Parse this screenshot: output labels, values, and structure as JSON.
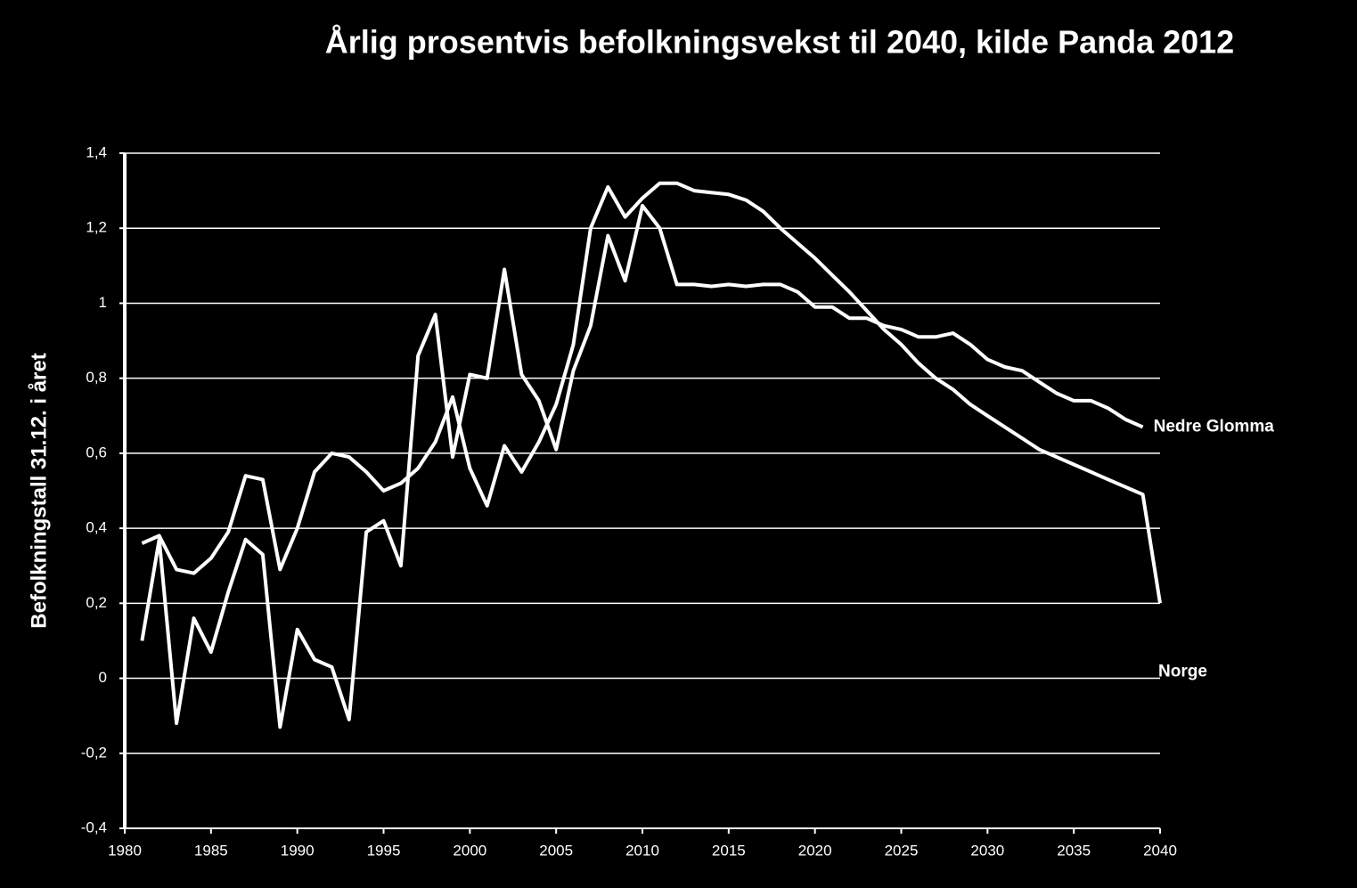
{
  "chart_data": {
    "type": "line",
    "title": "Årlig prosentvis befolkningsvekst til 2040, kilde Panda 2012",
    "y_label": "Befolkningstall 31.12. i året",
    "x": [
      1981,
      1982,
      1983,
      1984,
      1985,
      1986,
      1987,
      1988,
      1989,
      1990,
      1991,
      1992,
      1993,
      1994,
      1995,
      1996,
      1997,
      1998,
      1999,
      2000,
      2001,
      2002,
      2003,
      2004,
      2005,
      2006,
      2007,
      2008,
      2009,
      2010,
      2011,
      2012,
      2013,
      2014,
      2015,
      2016,
      2017,
      2018,
      2019,
      2020,
      2021,
      2022,
      2023,
      2024,
      2025,
      2026,
      2027,
      2028,
      2029,
      2030,
      2031,
      2032,
      2033,
      2034,
      2035,
      2036,
      2037,
      2038,
      2039,
      2040
    ],
    "series": [
      {
        "name": "Nedre Glomma",
        "color": "#ffffff",
        "values": [
          0.1,
          0.37,
          -0.12,
          0.16,
          0.07,
          0.23,
          0.37,
          0.33,
          -0.13,
          0.13,
          0.05,
          0.03,
          -0.11,
          0.39,
          0.42,
          0.3,
          0.86,
          0.97,
          0.59,
          0.81,
          0.8,
          1.09,
          0.81,
          0.74,
          0.61,
          0.82,
          0.94,
          1.18,
          1.06,
          1.26,
          1.2,
          1.05,
          1.05,
          1.045,
          1.05,
          1.045,
          1.05,
          1.05,
          1.03,
          0.99,
          0.99,
          0.96,
          0.96,
          0.94,
          0.93,
          0.91,
          0.91,
          0.92,
          0.89,
          0.85,
          0.83,
          0.82,
          0.79,
          0.76,
          0.74,
          0.74,
          0.72,
          0.69,
          0.67,
          null
        ]
      },
      {
        "name": "Norge",
        "color": "#ffffff",
        "values": [
          0.36,
          0.38,
          0.29,
          0.28,
          0.32,
          0.39,
          0.54,
          0.53,
          0.29,
          0.4,
          0.55,
          0.6,
          0.59,
          0.55,
          0.5,
          0.52,
          0.56,
          0.63,
          0.75,
          0.56,
          0.46,
          0.62,
          0.55,
          0.63,
          0.73,
          0.89,
          1.2,
          1.31,
          1.23,
          1.28,
          1.32,
          1.32,
          1.3,
          1.295,
          1.29,
          1.275,
          1.245,
          1.2,
          1.16,
          1.12,
          1.075,
          1.03,
          0.98,
          0.93,
          0.89,
          0.84,
          0.8,
          0.77,
          0.73,
          0.7,
          0.67,
          0.64,
          0.61,
          0.59,
          0.57,
          0.55,
          0.53,
          0.51,
          0.49,
          0.2
        ]
      }
    ],
    "xlim": [
      1980,
      2040
    ],
    "xticks": [
      1980,
      1985,
      1990,
      1995,
      2000,
      2005,
      2010,
      2015,
      2020,
      2025,
      2030,
      2035,
      2040
    ],
    "ylim": [
      -0.4,
      1.4
    ],
    "yticks": [
      {
        "value": -0.4,
        "label": "-0,4"
      },
      {
        "value": -0.2,
        "label": "-0,2"
      },
      0,
      {
        "value": 0.2,
        "label": "0,2"
      },
      {
        "value": 0.4,
        "label": "0,4"
      },
      {
        "value": 0.6,
        "label": "0,6"
      },
      {
        "value": 0.8,
        "label": "0,8"
      },
      1,
      {
        "value": 1.2,
        "label": "1,2"
      },
      {
        "value": 1.4,
        "label": "1,4"
      }
    ],
    "grid": true
  }
}
